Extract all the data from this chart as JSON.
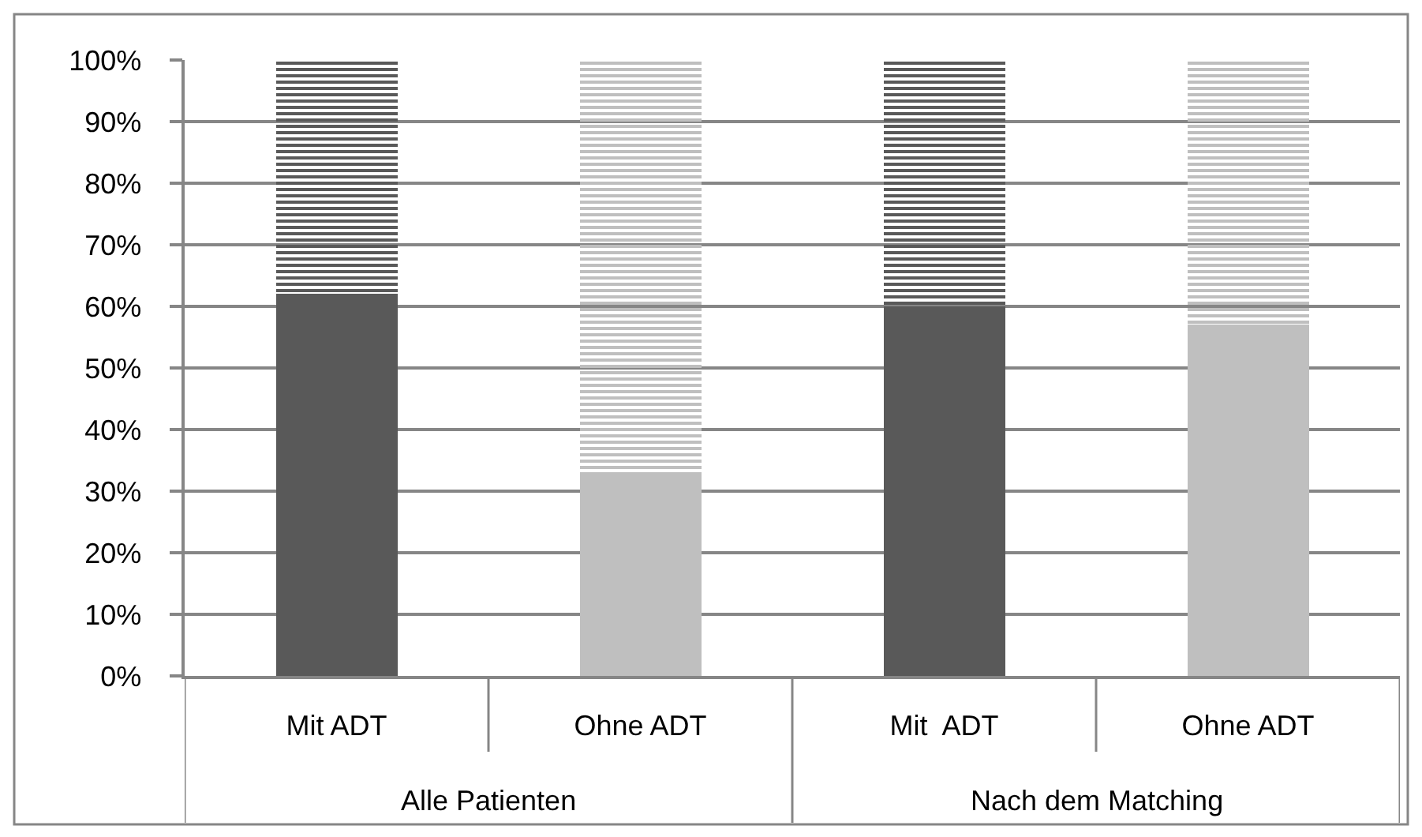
{
  "chart_data": {
    "type": "bar",
    "stacked": true,
    "categories": [
      "Mit ADT",
      "Ohne ADT",
      "Mit  ADT",
      "Ohne ADT"
    ],
    "series": [
      {
        "colors": [
          "#595959",
          "#bfbfbf",
          "#595959",
          "#bfbfbf"
        ],
        "values": [
          62,
          33,
          60,
          57
        ]
      },
      {
        "colors": [
          "#595959",
          "#bfbfbf",
          "#595959",
          "#bfbfbf"
        ],
        "values": [
          38,
          67,
          40,
          43
        ]
      }
    ],
    "ylim": [
      0,
      100
    ],
    "yticks": [
      {
        "value": 0,
        "label": "0%"
      },
      {
        "value": 10,
        "label": "10%"
      },
      {
        "value": 20,
        "label": "20%"
      },
      {
        "value": 30,
        "label": "30%"
      },
      {
        "value": 40,
        "label": "40%"
      },
      {
        "value": 50,
        "label": "50%"
      },
      {
        "value": 60,
        "label": "60%"
      },
      {
        "value": 70,
        "label": "70%"
      },
      {
        "value": 80,
        "label": "80%"
      },
      {
        "value": 90,
        "label": "90%"
      },
      {
        "value": 100,
        "label": "100%"
      }
    ],
    "grid": "y",
    "annotations": [
      "Alle Patienten",
      "Nach dem Matching"
    ]
  }
}
